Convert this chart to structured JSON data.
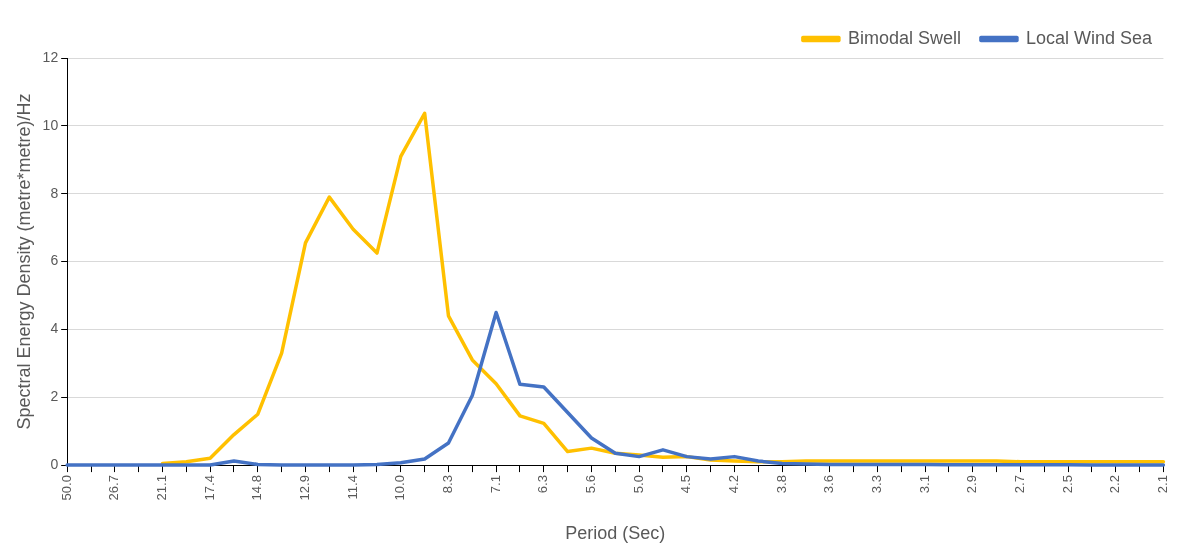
{
  "chart_data": {
    "type": "line",
    "xlabel": "Period (Sec)",
    "ylabel": "Spectral Energy Density (metre*metre)/Hz",
    "categories": [
      "50.0",
      null,
      "26.7",
      null,
      "21.1",
      null,
      "17.4",
      null,
      "14.8",
      null,
      "12.9",
      null,
      "11.4",
      null,
      "10.0",
      null,
      "8.3",
      null,
      "7.1",
      null,
      "6.3",
      null,
      "5.6",
      null,
      "5.0",
      null,
      "4.5",
      null,
      "4.2",
      null,
      "3.8",
      null,
      "3.6",
      null,
      "3.3",
      null,
      "3.1",
      null,
      "2.9",
      null,
      "2.7",
      null,
      "2.5",
      null,
      "2.2",
      null,
      "2.1"
    ],
    "series": [
      {
        "name": "Bimodal Swell",
        "color": "#ffc000",
        "values": [
          null,
          null,
          null,
          null,
          0.05,
          0.1,
          0.2,
          0.9,
          1.5,
          3.3,
          6.55,
          7.9,
          6.95,
          6.25,
          9.1,
          10.37,
          4.4,
          3.1,
          2.4,
          1.45,
          1.23,
          0.4,
          0.5,
          0.35,
          0.3,
          0.23,
          0.25,
          0.15,
          0.12,
          0.1,
          0.1,
          0.12,
          0.12,
          0.12,
          0.12,
          0.12,
          0.12,
          0.12,
          0.12,
          0.12,
          0.1,
          0.1,
          0.1,
          0.1,
          0.1,
          0.1,
          0.1
        ]
      },
      {
        "name": "Local Wind Sea",
        "color": "#4472c4",
        "values": [
          0,
          0,
          0,
          0,
          0,
          0,
          0,
          0.12,
          0.02,
          0,
          0,
          0,
          0,
          0.02,
          0.07,
          0.18,
          0.65,
          2.05,
          4.5,
          2.38,
          2.3,
          1.55,
          0.8,
          0.35,
          0.25,
          0.45,
          0.25,
          0.18,
          0.25,
          0.12,
          0.05,
          0.03,
          0.02,
          0.02,
          0.02,
          0.02,
          0.02,
          0.01,
          0.01,
          0.01,
          0.01,
          0.01,
          0.01,
          0,
          0,
          0,
          0
        ]
      }
    ],
    "ylim": [
      0,
      12
    ],
    "yticks": [
      0,
      2,
      4,
      6,
      8,
      10,
      12
    ],
    "grid": "y",
    "legend": "top right",
    "marker": "none",
    "line_style": "solid"
  }
}
